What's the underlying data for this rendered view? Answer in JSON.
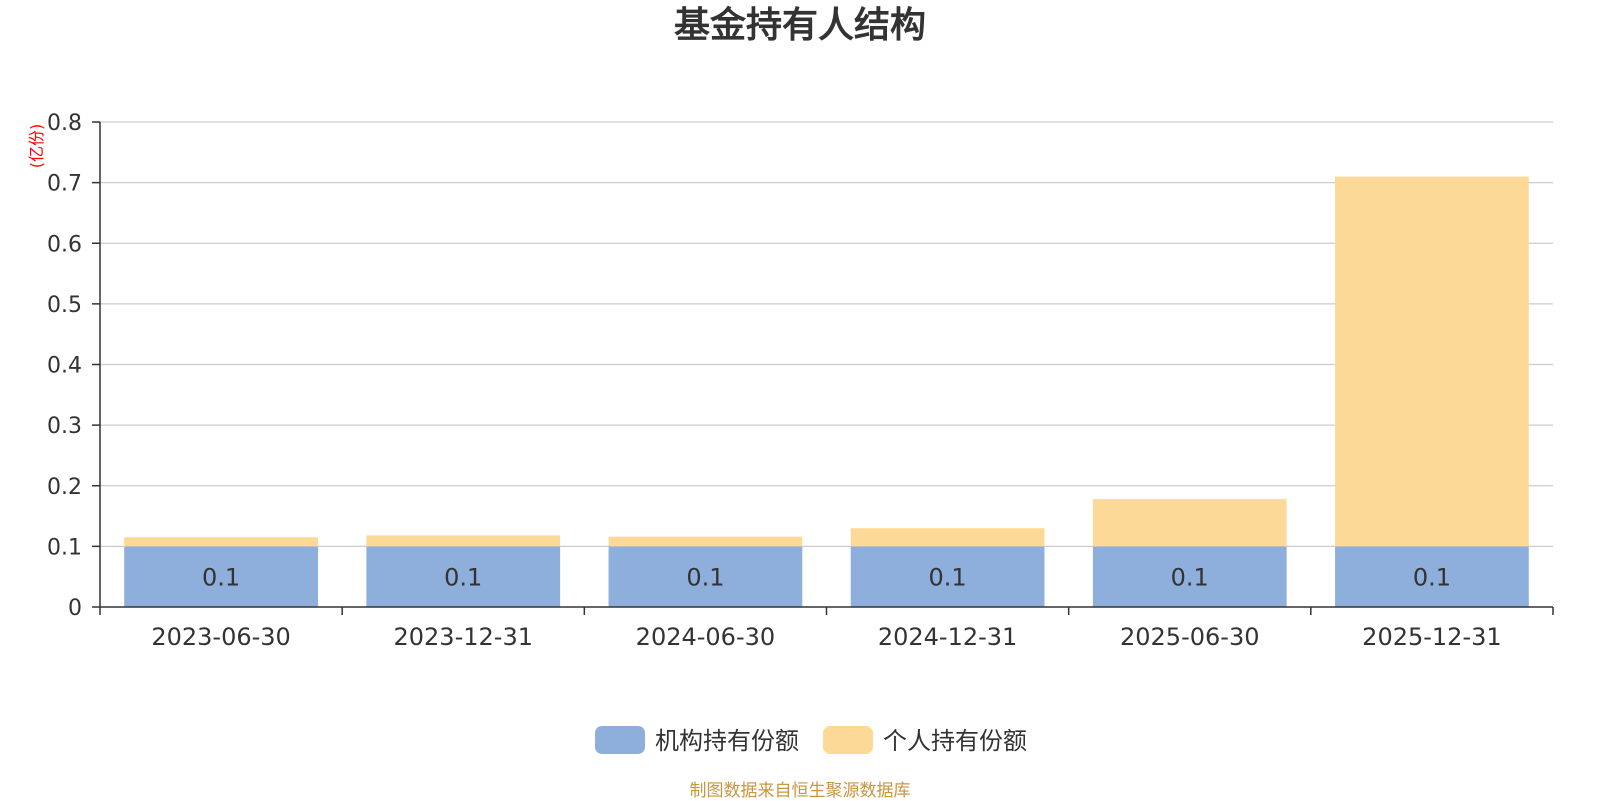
{
  "chart_data": {
    "type": "bar",
    "stacked": true,
    "title": "基金持有人结构",
    "ylabel": "(亿份)",
    "ylim": [
      0,
      0.8
    ],
    "yticks": [
      "0",
      "0.1",
      "0.2",
      "0.3",
      "0.4",
      "0.5",
      "0.6",
      "0.7",
      "0.8"
    ],
    "grid": true,
    "legend_position": "bottom-center",
    "categories": [
      "2023-06-30",
      "2023-12-31",
      "2024-06-30",
      "2024-12-31",
      "2025-06-30",
      "2025-12-31"
    ],
    "series": [
      {
        "name": "机构持有份额",
        "color": "#8eaedb",
        "values": [
          0.1,
          0.1,
          0.1,
          0.1,
          0.1,
          0.1
        ],
        "data_labels": [
          "0.1",
          "0.1",
          "0.1",
          "0.1",
          "0.1",
          "0.1"
        ]
      },
      {
        "name": "个人持有份额",
        "color": "#fdd998",
        "values": [
          0.015,
          0.018,
          0.016,
          0.03,
          0.078,
          0.61
        ]
      }
    ]
  },
  "source_note": "制图数据来自恒生聚源数据库",
  "colors": {
    "axis": "#333333",
    "grid": "#cccccc",
    "ylabel": "#ff0000",
    "source": "#c8963e"
  }
}
